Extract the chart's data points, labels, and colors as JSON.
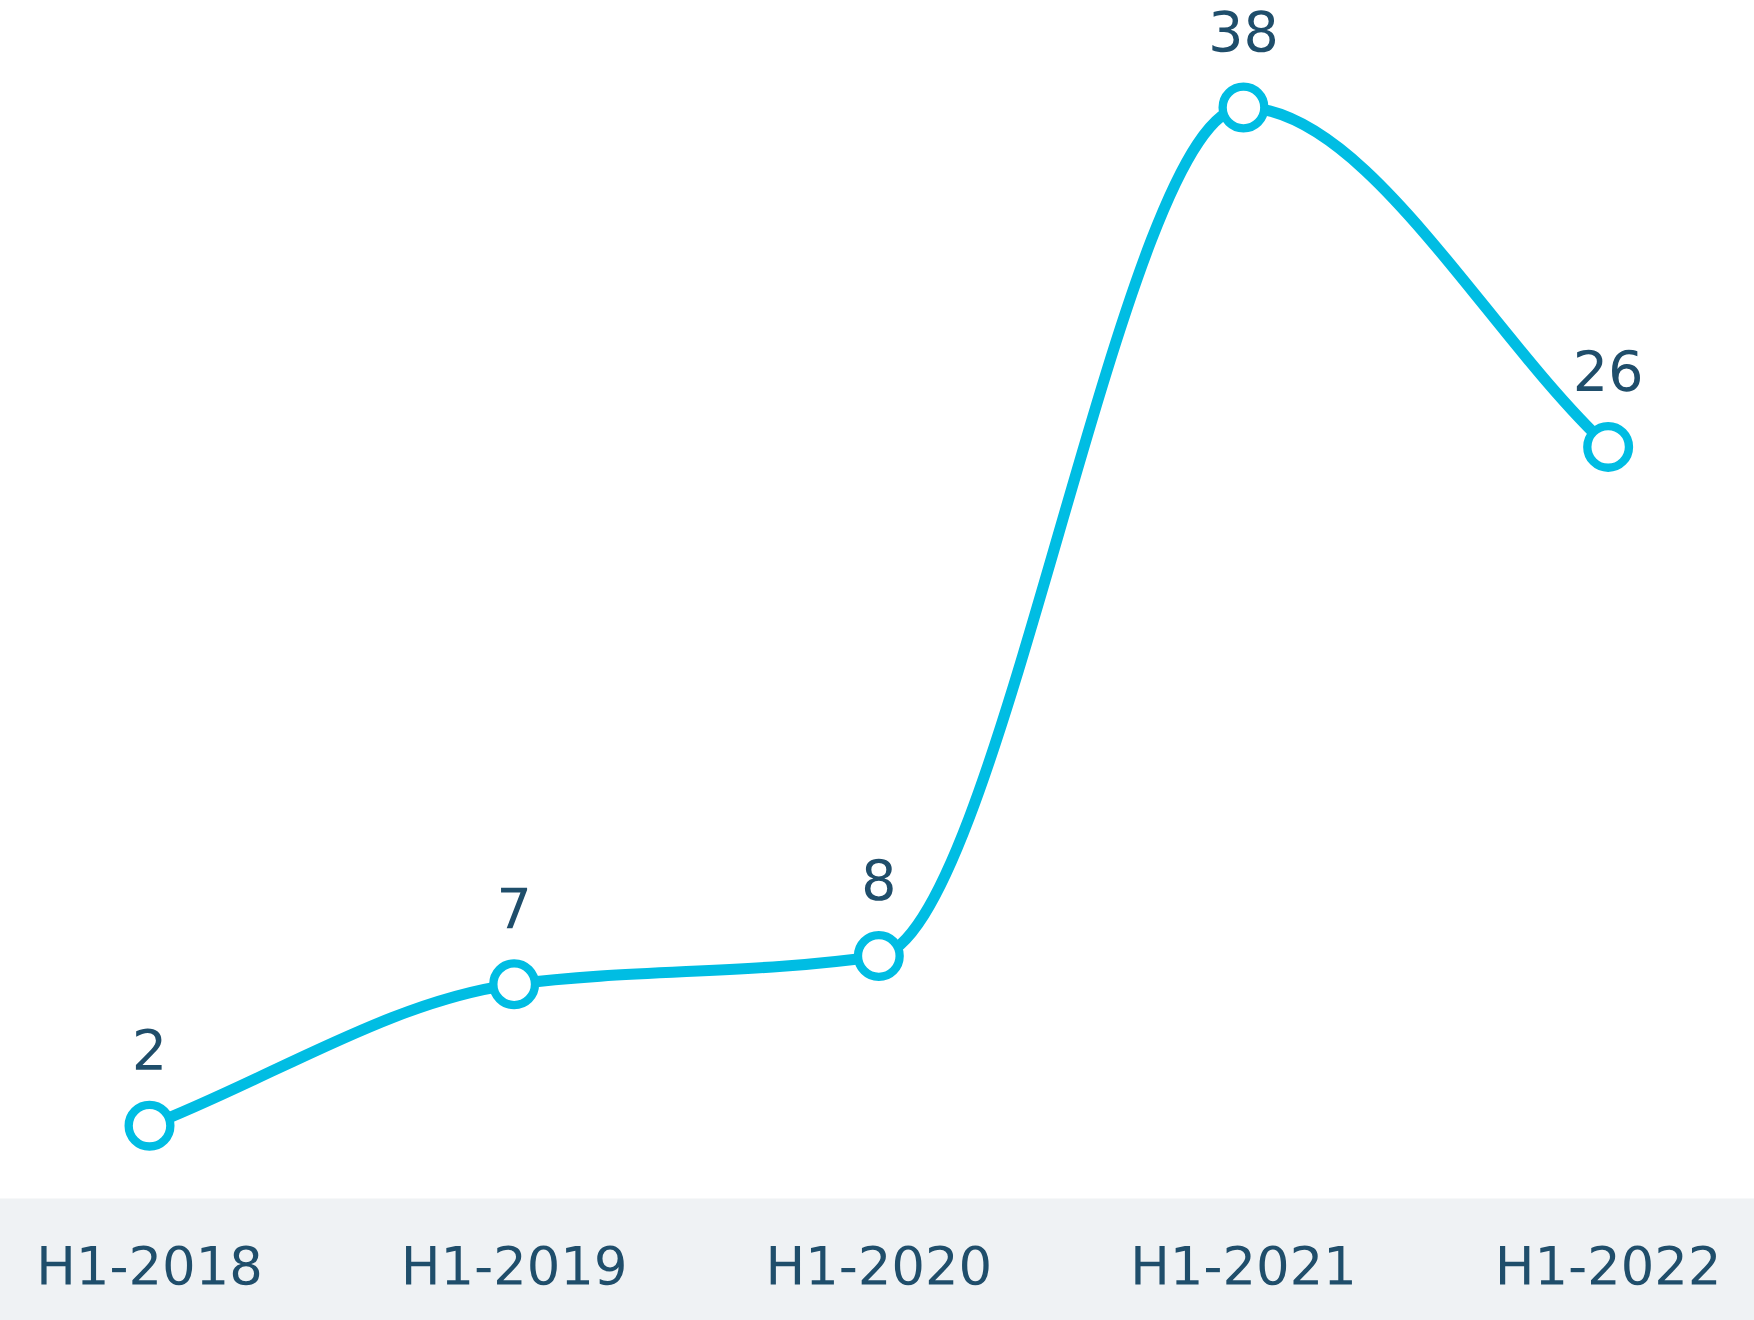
{
  "chart_data": {
    "type": "line",
    "categories": [
      "H1-2018",
      "H1-2019",
      "H1-2020",
      "H1-2021",
      "H1-2022"
    ],
    "series": [
      {
        "color": "#00bde3",
        "values": [
          2,
          7,
          8,
          38,
          26
        ]
      }
    ],
    "data_labels": true,
    "marker": "circle",
    "line_style": "solid",
    "grid": false,
    "legend": false
  }
}
